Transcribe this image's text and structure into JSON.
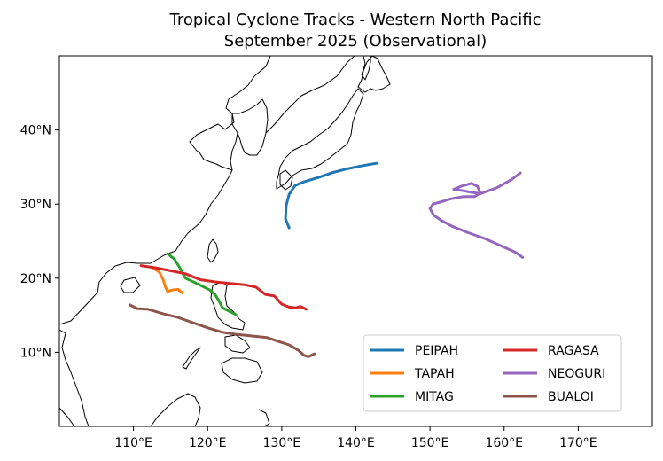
{
  "title": {
    "line1": "Tropical Cyclone Tracks - Western North Pacific",
    "line2": "September 2025 (Observational)"
  },
  "chart_data": {
    "type": "line",
    "xlabel": "",
    "ylabel": "",
    "xlim": [
      100,
      180
    ],
    "ylim": [
      0,
      50
    ],
    "x_ticks": [
      {
        "value": 110,
        "label": "110°E"
      },
      {
        "value": 120,
        "label": "120°E"
      },
      {
        "value": 130,
        "label": "130°E"
      },
      {
        "value": 140,
        "label": "140°E"
      },
      {
        "value": 150,
        "label": "150°E"
      },
      {
        "value": 160,
        "label": "160°E"
      },
      {
        "value": 170,
        "label": "170°E"
      }
    ],
    "y_ticks": [
      {
        "value": 10,
        "label": "10°N"
      },
      {
        "value": 20,
        "label": "20°N"
      },
      {
        "value": 30,
        "label": "30°N"
      },
      {
        "value": 40,
        "label": "40°N"
      }
    ],
    "grid": false,
    "legend_position": "bottom-right",
    "series": [
      {
        "name": "PEIPAH",
        "color": "#1f77b4",
        "points": [
          [
            131.0,
            26.8
          ],
          [
            130.5,
            28.0
          ],
          [
            130.6,
            29.8
          ],
          [
            131.0,
            31.3
          ],
          [
            131.8,
            32.5
          ],
          [
            133.0,
            33.0
          ],
          [
            135.0,
            33.6
          ],
          [
            137.0,
            34.3
          ],
          [
            139.0,
            34.8
          ],
          [
            141.0,
            35.2
          ],
          [
            142.8,
            35.5
          ]
        ]
      },
      {
        "name": "TAPAH",
        "color": "#ff7f0e",
        "points": [
          [
            112.5,
            21.5
          ],
          [
            113.5,
            20.8
          ],
          [
            114.0,
            19.8
          ],
          [
            114.3,
            18.8
          ],
          [
            114.6,
            18.2
          ],
          [
            115.2,
            18.4
          ],
          [
            116.0,
            18.5
          ],
          [
            116.6,
            18.0
          ]
        ]
      },
      {
        "name": "MITAG",
        "color": "#2ca02c",
        "points": [
          [
            114.6,
            23.3
          ],
          [
            115.5,
            22.6
          ],
          [
            116.2,
            21.5
          ],
          [
            117.0,
            20.0
          ],
          [
            118.3,
            19.4
          ],
          [
            119.5,
            18.8
          ],
          [
            120.3,
            18.4
          ],
          [
            121.0,
            17.8
          ],
          [
            121.5,
            17.0
          ],
          [
            122.0,
            16.0
          ],
          [
            123.0,
            15.5
          ],
          [
            123.8,
            15.1
          ]
        ]
      },
      {
        "name": "RAGASA",
        "color": "#d62728",
        "points": [
          [
            111.0,
            21.7
          ],
          [
            113.0,
            21.4
          ],
          [
            115.0,
            21.0
          ],
          [
            117.0,
            20.6
          ],
          [
            119.0,
            19.8
          ],
          [
            121.0,
            19.5
          ],
          [
            123.0,
            19.3
          ],
          [
            125.0,
            19.1
          ],
          [
            126.5,
            18.8
          ],
          [
            127.8,
            17.8
          ],
          [
            129.0,
            17.6
          ],
          [
            130.0,
            16.5
          ],
          [
            131.0,
            16.1
          ],
          [
            132.0,
            16.0
          ],
          [
            132.5,
            16.2
          ],
          [
            133.3,
            15.8
          ]
        ]
      },
      {
        "name": "NEOGURI",
        "color": "#9467bd",
        "points": [
          [
            162.5,
            22.8
          ],
          [
            161.5,
            23.5
          ],
          [
            159.5,
            24.4
          ],
          [
            157.5,
            25.3
          ],
          [
            155.0,
            26.2
          ],
          [
            153.0,
            27.0
          ],
          [
            151.5,
            27.8
          ],
          [
            150.5,
            28.5
          ],
          [
            150.0,
            29.4
          ],
          [
            150.4,
            30.0
          ],
          [
            151.5,
            30.3
          ],
          [
            152.8,
            30.7
          ],
          [
            154.5,
            31.0
          ],
          [
            156.0,
            31.0
          ],
          [
            156.8,
            31.5
          ],
          [
            156.4,
            32.4
          ],
          [
            155.6,
            32.8
          ],
          [
            154.2,
            32.4
          ],
          [
            153.2,
            32.0
          ],
          [
            154.5,
            31.8
          ],
          [
            155.5,
            31.6
          ],
          [
            156.8,
            31.4
          ],
          [
            159.0,
            32.2
          ],
          [
            161.0,
            33.3
          ],
          [
            162.2,
            34.2
          ]
        ]
      },
      {
        "name": "BUALOI",
        "color": "#8c564b",
        "points": [
          [
            109.5,
            16.4
          ],
          [
            110.5,
            15.9
          ],
          [
            112.0,
            15.8
          ],
          [
            114.0,
            15.2
          ],
          [
            116.0,
            14.7
          ],
          [
            118.0,
            14.0
          ],
          [
            120.0,
            13.3
          ],
          [
            122.0,
            12.7
          ],
          [
            124.0,
            12.4
          ],
          [
            126.0,
            12.2
          ],
          [
            128.0,
            12.0
          ],
          [
            129.5,
            11.5
          ],
          [
            131.0,
            11.0
          ],
          [
            132.2,
            10.3
          ],
          [
            133.0,
            9.6
          ],
          [
            133.6,
            9.4
          ],
          [
            134.4,
            9.8
          ]
        ]
      }
    ]
  }
}
